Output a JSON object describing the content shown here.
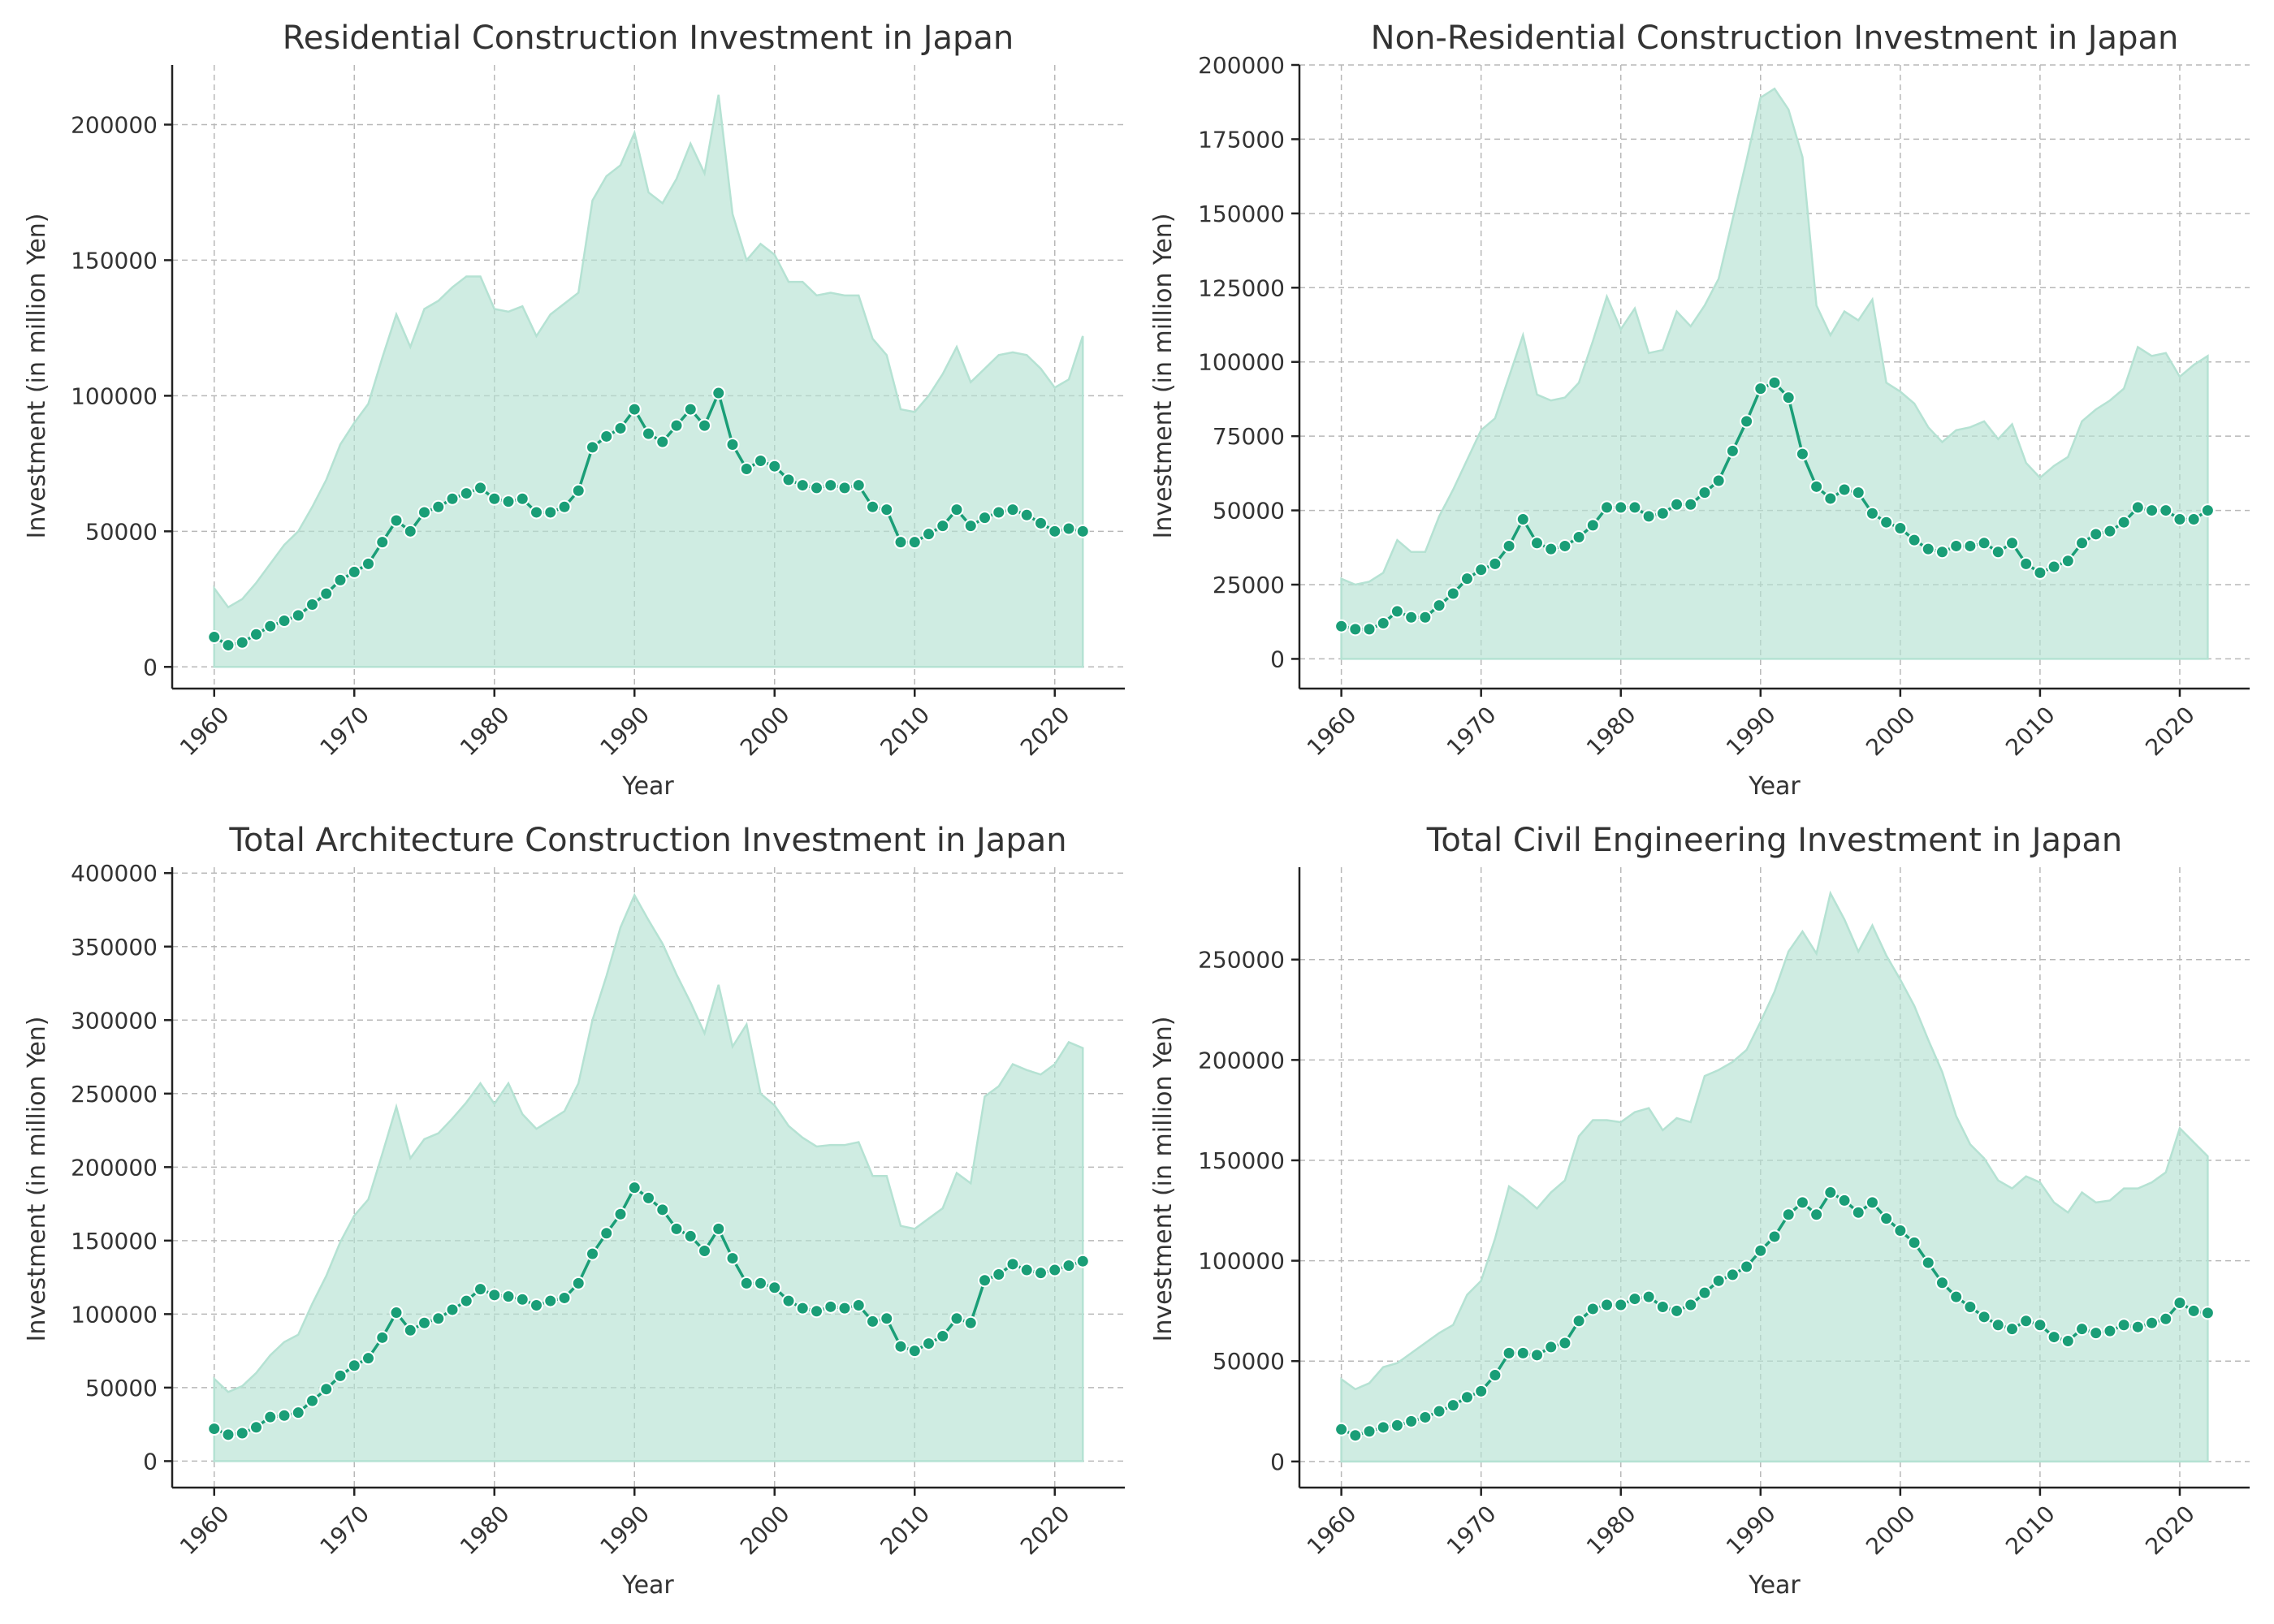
{
  "colors": {
    "line": "#1a9e77",
    "fill": "#b5e2d3"
  },
  "chart_data": [
    {
      "type": "line",
      "title": "Residential Construction Investment in Japan",
      "xlabel": "Year",
      "ylabel": "Investment (in million Yen)",
      "xlim": [
        1957,
        2025
      ],
      "ylim": [
        -8000,
        222000
      ],
      "xticks": [
        1960,
        1970,
        1980,
        1990,
        2000,
        2010,
        2020
      ],
      "yticks": [
        0,
        50000,
        100000,
        150000,
        200000
      ],
      "grid": true,
      "x": [
        1960,
        1961,
        1962,
        1963,
        1964,
        1965,
        1966,
        1967,
        1968,
        1969,
        1970,
        1971,
        1972,
        1973,
        1974,
        1975,
        1976,
        1977,
        1978,
        1979,
        1980,
        1981,
        1982,
        1983,
        1984,
        1985,
        1986,
        1987,
        1988,
        1989,
        1990,
        1991,
        1992,
        1993,
        1994,
        1995,
        1996,
        1997,
        1998,
        1999,
        2000,
        2001,
        2002,
        2003,
        2004,
        2005,
        2006,
        2007,
        2008,
        2009,
        2010,
        2011,
        2012,
        2013,
        2014,
        2015,
        2016,
        2017,
        2018,
        2019,
        2020,
        2021,
        2022
      ],
      "series": [
        {
          "values": [
            11000,
            8000,
            9000,
            12000,
            15000,
            17000,
            19000,
            23000,
            27000,
            32000,
            35000,
            38000,
            46000,
            54000,
            50000,
            57000,
            59000,
            62000,
            64000,
            66000,
            62000,
            61000,
            62000,
            57000,
            57000,
            59000,
            65000,
            81000,
            85000,
            88000,
            95000,
            86000,
            83000,
            89000,
            95000,
            89000,
            101000,
            82000,
            73000,
            76000,
            74000,
            69000,
            67000,
            66000,
            67000,
            66000,
            67000,
            59000,
            58000,
            46000,
            46000,
            49000,
            52000,
            58000,
            52000,
            55000,
            57000,
            58000,
            56000,
            53000,
            50000,
            51000,
            50000
          ]
        },
        {
          "values": [
            29000,
            22000,
            25000,
            31000,
            38000,
            45000,
            50000,
            59000,
            69000,
            82000,
            90000,
            97000,
            114000,
            130000,
            118000,
            132000,
            135000,
            140000,
            144000,
            144000,
            132000,
            131000,
            133000,
            122000,
            130000,
            134000,
            138000,
            172000,
            181000,
            185000,
            197000,
            175000,
            171000,
            180000,
            193000,
            182000,
            211000,
            167000,
            150000,
            156000,
            152000,
            142000,
            142000,
            137000,
            138000,
            137000,
            137000,
            121000,
            115000,
            95000,
            94000,
            100000,
            108000,
            118000,
            105000,
            110000,
            115000,
            116000,
            115000,
            110000,
            103000,
            106000,
            122000
          ]
        }
      ]
    },
    {
      "type": "line",
      "title": "Non-Residential Construction Investment in Japan",
      "xlabel": "Year",
      "ylabel": "Investment (in million Yen)",
      "xlim": [
        1957,
        2025
      ],
      "ylim": [
        -10000,
        200000
      ],
      "xticks": [
        1960,
        1970,
        1980,
        1990,
        2000,
        2010,
        2020
      ],
      "yticks": [
        0,
        25000,
        50000,
        75000,
        100000,
        125000,
        150000,
        175000,
        200000
      ],
      "grid": true,
      "x": [
        1960,
        1961,
        1962,
        1963,
        1964,
        1965,
        1966,
        1967,
        1968,
        1969,
        1970,
        1971,
        1972,
        1973,
        1974,
        1975,
        1976,
        1977,
        1978,
        1979,
        1980,
        1981,
        1982,
        1983,
        1984,
        1985,
        1986,
        1987,
        1988,
        1989,
        1990,
        1991,
        1992,
        1993,
        1994,
        1995,
        1996,
        1997,
        1998,
        1999,
        2000,
        2001,
        2002,
        2003,
        2004,
        2005,
        2006,
        2007,
        2008,
        2009,
        2010,
        2011,
        2012,
        2013,
        2014,
        2015,
        2016,
        2017,
        2018,
        2019,
        2020,
        2021,
        2022
      ],
      "series": [
        {
          "values": [
            11000,
            10000,
            10000,
            12000,
            16000,
            14000,
            14000,
            18000,
            22000,
            27000,
            30000,
            32000,
            38000,
            47000,
            39000,
            37000,
            38000,
            41000,
            45000,
            51000,
            51000,
            51000,
            48000,
            49000,
            52000,
            52000,
            56000,
            60000,
            70000,
            80000,
            91000,
            93000,
            88000,
            69000,
            58000,
            54000,
            57000,
            56000,
            49000,
            46000,
            44000,
            40000,
            37000,
            36000,
            38000,
            38000,
            39000,
            36000,
            39000,
            32000,
            29000,
            31000,
            33000,
            39000,
            42000,
            43000,
            46000,
            51000,
            50000,
            50000,
            47000,
            47000,
            50000
          ]
        },
        {
          "values": [
            27000,
            25000,
            26000,
            29000,
            40000,
            36000,
            36000,
            48000,
            57000,
            67000,
            77000,
            81000,
            95000,
            109000,
            89000,
            87000,
            88000,
            93000,
            107000,
            122000,
            111000,
            118000,
            103000,
            104000,
            117000,
            112000,
            119000,
            128000,
            148000,
            168000,
            189000,
            192000,
            185000,
            169000,
            119000,
            109000,
            117000,
            114000,
            121000,
            93000,
            90000,
            86000,
            78000,
            73000,
            77000,
            78000,
            80000,
            74000,
            79000,
            66000,
            61000,
            65000,
            68000,
            80000,
            84000,
            87000,
            91000,
            105000,
            102000,
            103000,
            95000,
            99000,
            102000
          ]
        }
      ]
    },
    {
      "type": "line",
      "title": "Total Architecture Construction Investment in Japan",
      "xlabel": "Year",
      "ylabel": "Investment (in million Yen)",
      "xlim": [
        1957,
        2025
      ],
      "ylim": [
        -18000,
        404000
      ],
      "xticks": [
        1960,
        1970,
        1980,
        1990,
        2000,
        2010,
        2020
      ],
      "yticks": [
        0,
        50000,
        100000,
        150000,
        200000,
        250000,
        300000,
        350000,
        400000
      ],
      "grid": true,
      "x": [
        1960,
        1961,
        1962,
        1963,
        1964,
        1965,
        1966,
        1967,
        1968,
        1969,
        1970,
        1971,
        1972,
        1973,
        1974,
        1975,
        1976,
        1977,
        1978,
        1979,
        1980,
        1981,
        1982,
        1983,
        1984,
        1985,
        1986,
        1987,
        1988,
        1989,
        1990,
        1991,
        1992,
        1993,
        1994,
        1995,
        1996,
        1997,
        1998,
        1999,
        2000,
        2001,
        2002,
        2003,
        2004,
        2005,
        2006,
        2007,
        2008,
        2009,
        2010,
        2011,
        2012,
        2013,
        2014,
        2015,
        2016,
        2017,
        2018,
        2019,
        2020,
        2021,
        2022
      ],
      "series": [
        {
          "values": [
            22000,
            18000,
            19000,
            23000,
            30000,
            31000,
            33000,
            41000,
            49000,
            58000,
            65000,
            70000,
            84000,
            101000,
            89000,
            94000,
            97000,
            103000,
            109000,
            117000,
            113000,
            112000,
            110000,
            106000,
            109000,
            111000,
            121000,
            141000,
            155000,
            168000,
            186000,
            179000,
            171000,
            158000,
            153000,
            143000,
            158000,
            138000,
            121000,
            121000,
            118000,
            109000,
            104000,
            102000,
            105000,
            104000,
            106000,
            95000,
            97000,
            78000,
            75000,
            80000,
            85000,
            97000,
            94000,
            123000,
            127000,
            134000,
            130000,
            128000,
            130000,
            133000,
            136000
          ]
        },
        {
          "values": [
            56000,
            47000,
            51000,
            60000,
            72000,
            81000,
            86000,
            107000,
            126000,
            149000,
            167000,
            178000,
            209000,
            241000,
            206000,
            219000,
            223000,
            233000,
            244000,
            257000,
            243000,
            257000,
            236000,
            226000,
            232000,
            238000,
            257000,
            300000,
            330000,
            363000,
            385000,
            368000,
            352000,
            331000,
            312000,
            291000,
            324000,
            282000,
            297000,
            250000,
            242000,
            228000,
            220000,
            214000,
            215000,
            215000,
            217000,
            194000,
            194000,
            160000,
            158000,
            165000,
            172000,
            196000,
            189000,
            248000,
            255000,
            270000,
            266000,
            263000,
            270000,
            285000,
            281000
          ]
        }
      ]
    },
    {
      "type": "line",
      "title": "Total Civil Engineering Investment in Japan",
      "xlabel": "Year",
      "ylabel": "Investment (in million Yen)",
      "xlim": [
        1957,
        2025
      ],
      "ylim": [
        -13000,
        296000
      ],
      "xticks": [
        1960,
        1970,
        1980,
        1990,
        2000,
        2010,
        2020
      ],
      "yticks": [
        0,
        50000,
        100000,
        150000,
        200000,
        250000
      ],
      "grid": true,
      "x": [
        1960,
        1961,
        1962,
        1963,
        1964,
        1965,
        1966,
        1967,
        1968,
        1969,
        1970,
        1971,
        1972,
        1973,
        1974,
        1975,
        1976,
        1977,
        1978,
        1979,
        1980,
        1981,
        1982,
        1983,
        1984,
        1985,
        1986,
        1987,
        1988,
        1989,
        1990,
        1991,
        1992,
        1993,
        1994,
        1995,
        1996,
        1997,
        1998,
        1999,
        2000,
        2001,
        2002,
        2003,
        2004,
        2005,
        2006,
        2007,
        2008,
        2009,
        2010,
        2011,
        2012,
        2013,
        2014,
        2015,
        2016,
        2017,
        2018,
        2019,
        2020,
        2021,
        2022
      ],
      "series": [
        {
          "values": [
            16000,
            13000,
            15000,
            17000,
            18000,
            20000,
            22000,
            25000,
            28000,
            32000,
            35000,
            43000,
            54000,
            54000,
            53000,
            57000,
            59000,
            70000,
            76000,
            78000,
            78000,
            81000,
            82000,
            77000,
            75000,
            78000,
            84000,
            90000,
            93000,
            97000,
            105000,
            112000,
            123000,
            129000,
            123000,
            134000,
            130000,
            124000,
            129000,
            121000,
            115000,
            109000,
            99000,
            89000,
            82000,
            77000,
            72000,
            68000,
            66000,
            70000,
            68000,
            62000,
            60000,
            66000,
            64000,
            65000,
            68000,
            67000,
            69000,
            71000,
            79000,
            75000,
            74000
          ]
        },
        {
          "values": [
            41000,
            36000,
            39000,
            47000,
            49000,
            54000,
            59000,
            64000,
            68000,
            83000,
            90000,
            111000,
            137000,
            132000,
            126000,
            134000,
            140000,
            162000,
            170000,
            170000,
            169000,
            174000,
            176000,
            165000,
            171000,
            169000,
            192000,
            195000,
            199000,
            205000,
            219000,
            234000,
            254000,
            264000,
            253000,
            283000,
            270000,
            254000,
            267000,
            252000,
            240000,
            227000,
            210000,
            194000,
            172000,
            158000,
            151000,
            140000,
            136000,
            142000,
            139000,
            129000,
            124000,
            134000,
            129000,
            130000,
            136000,
            136000,
            139000,
            144000,
            166000,
            159000,
            152000
          ]
        }
      ]
    }
  ]
}
